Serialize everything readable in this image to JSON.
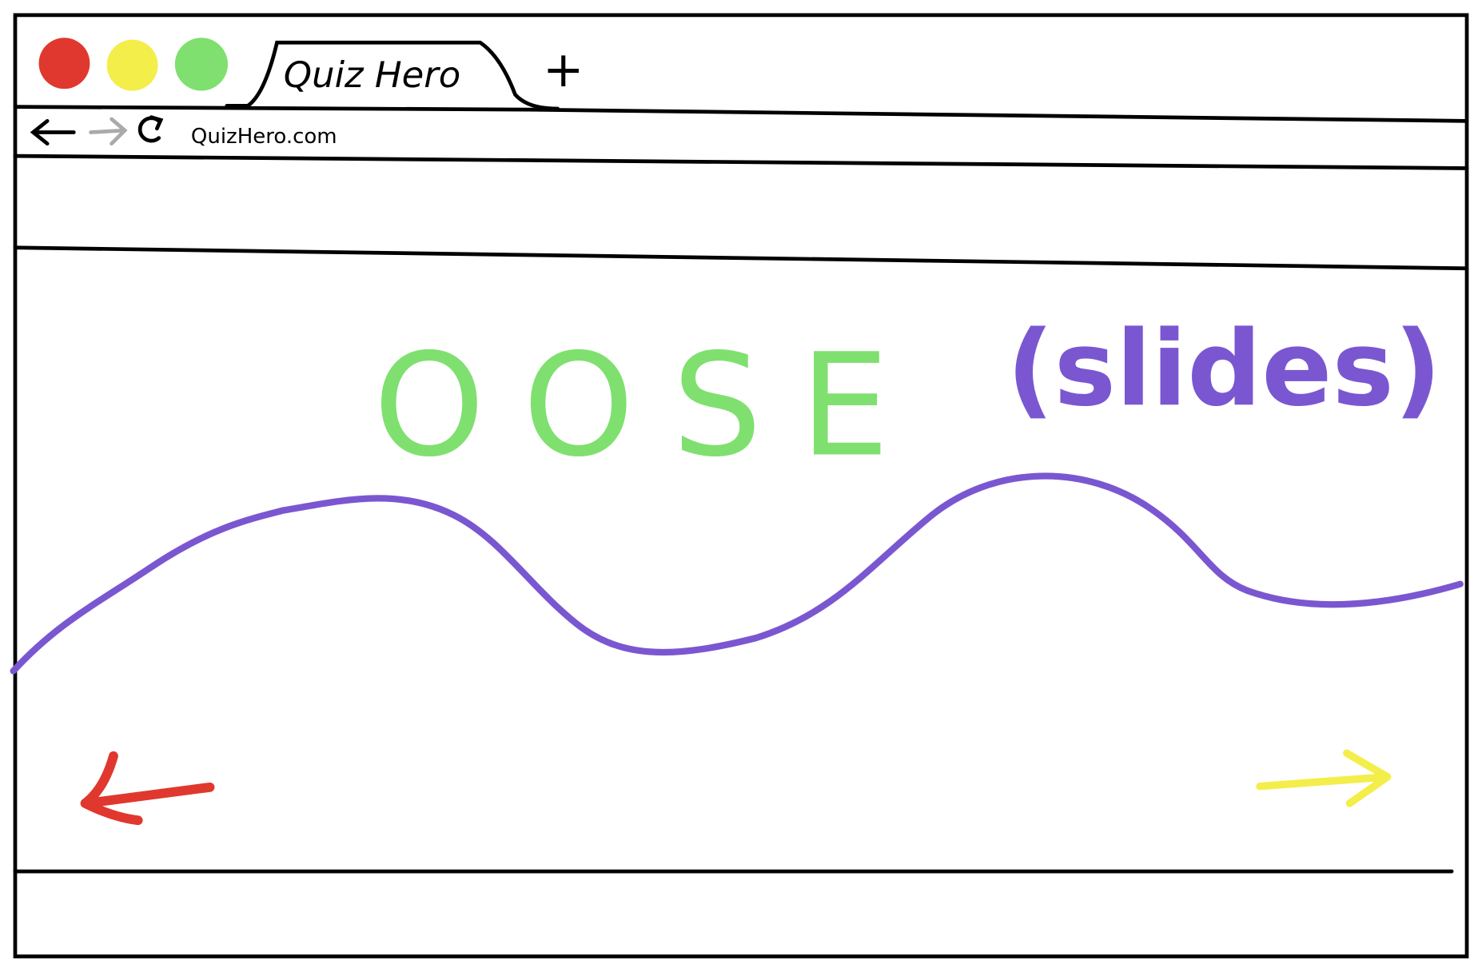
{
  "tab": {
    "title": "Quiz Hero",
    "new_tab": "+"
  },
  "address_bar": {
    "url": "QuizHero.com"
  },
  "content": {
    "title": "OOSE",
    "subtitle": "(slides)"
  }
}
